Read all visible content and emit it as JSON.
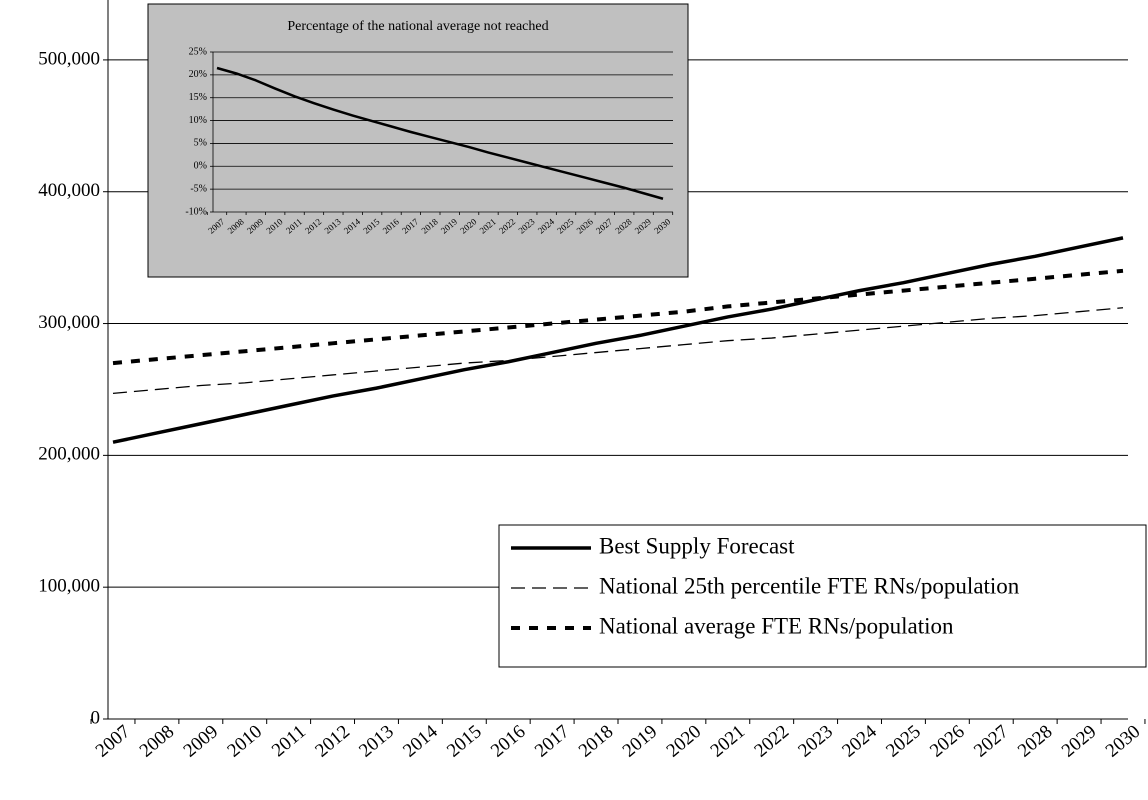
{
  "chart_data": [
    {
      "type": "line",
      "categories": [
        "2007",
        "2008",
        "2009",
        "2010",
        "2011",
        "2012",
        "2013",
        "2014",
        "2015",
        "2016",
        "2017",
        "2018",
        "2019",
        "2020",
        "2021",
        "2022",
        "2023",
        "2024",
        "2025",
        "2026",
        "2027",
        "2028",
        "2029",
        "2030"
      ],
      "ylim": [
        0,
        550000
      ],
      "yticks": [
        0,
        {
          "value": 100000,
          "label": "100,000"
        },
        {
          "value": 200000,
          "label": "200,000"
        },
        {
          "value": 300000,
          "label": "300,000"
        },
        {
          "value": 400000,
          "label": "400,000"
        },
        {
          "value": 500000,
          "label": "500,000"
        }
      ],
      "grid": true,
      "legend": "lower right",
      "series": [
        {
          "name": "Best Supply Forecast",
          "color": "#000000",
          "line_style": "solid",
          "values": [
            210000,
            217000,
            224000,
            231000,
            238000,
            245000,
            251000,
            258000,
            265000,
            271000,
            278000,
            285000,
            291000,
            298000,
            305000,
            311000,
            318000,
            325000,
            331000,
            338000,
            345000,
            351000,
            358000,
            365000
          ]
        },
        {
          "name": "National 25th percentile FTE RNs/population",
          "color": "#000000",
          "line_style": "dashed",
          "values": [
            247000,
            250000,
            253000,
            255000,
            258000,
            261000,
            264000,
            267000,
            270000,
            272000,
            275000,
            278000,
            281000,
            284000,
            287000,
            289000,
            292000,
            295000,
            298000,
            301000,
            304000,
            306000,
            309000,
            312000
          ]
        },
        {
          "name": "National average FTE RNs/population",
          "color": "#000000",
          "line_style": "dotted",
          "values": [
            270000,
            273000,
            276000,
            279000,
            282000,
            285000,
            288000,
            291000,
            294000,
            297000,
            300000,
            303000,
            306000,
            309000,
            313000,
            316000,
            319000,
            322000,
            325000,
            328000,
            331000,
            334000,
            337000,
            340000
          ]
        }
      ]
    },
    {
      "type": "line",
      "title": "Percentage of the national average not reached",
      "categories": [
        "2007",
        "2008",
        "2009",
        "2010",
        "2011",
        "2012",
        "2013",
        "2014",
        "2015",
        "2016",
        "2017",
        "2018",
        "2019",
        "2020",
        "2021",
        "2022",
        "2023",
        "2024",
        "2025",
        "2026",
        "2027",
        "2028",
        "2029",
        "2030"
      ],
      "ylim": [
        -10,
        25
      ],
      "yticks": [
        {
          "value": -10,
          "label": "-10%"
        },
        {
          "value": -5,
          "label": "-5%"
        },
        {
          "value": 0,
          "label": "0%"
        },
        {
          "value": 5,
          "label": "5%"
        },
        {
          "value": 10,
          "label": "10%"
        },
        {
          "value": 15,
          "label": "15%"
        },
        {
          "value": 20,
          "label": "20%"
        },
        {
          "value": 25,
          "label": "25%"
        }
      ],
      "grid": true,
      "color": "#000000",
      "values": [
        21.5,
        20.3,
        18.8,
        17.0,
        15.3,
        13.8,
        12.4,
        11.1,
        9.9,
        8.7,
        7.5,
        6.4,
        5.3,
        4.2,
        3.0,
        1.9,
        0.8,
        -0.3,
        -1.4,
        -2.5,
        -3.6,
        -4.7,
        -5.9,
        -7.1
      ]
    }
  ]
}
